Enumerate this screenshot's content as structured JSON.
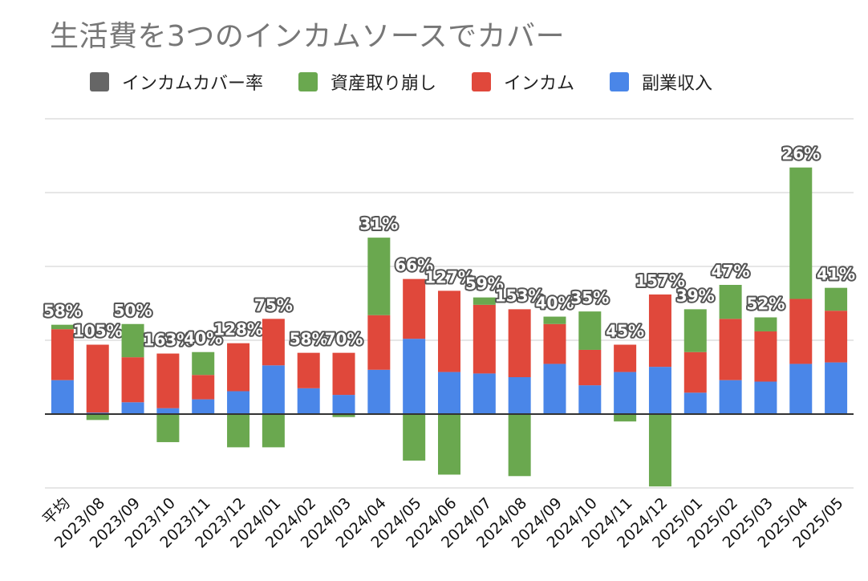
{
  "title": "生活費を3つのインカムソースでカバー",
  "chart_data": {
    "type": "bar",
    "stacked": true,
    "categories": [
      "平均",
      "2023/08",
      "2023/09",
      "2023/10",
      "2023/11",
      "2023/12",
      "2024/01",
      "2024/02",
      "2024/03",
      "2024/04",
      "2024/05",
      "2024/06",
      "2024/07",
      "2024/08",
      "2024/09",
      "2024/10",
      "2024/11",
      "2024/12",
      "2025/01",
      "2025/02",
      "2025/03",
      "2025/04",
      "2025/05"
    ],
    "series": [
      {
        "name": "インカムカバー率",
        "color": "#666666",
        "labels": [
          "58%",
          "105%",
          "50%",
          "163%",
          "40%",
          "128%",
          "75%",
          "58%",
          "70%",
          "31%",
          "66%",
          "127%",
          "59%",
          "153%",
          "40%",
          "35%",
          "45%",
          "157%",
          "39%",
          "47%",
          "52%",
          "26%",
          "41%"
        ]
      },
      {
        "name": "資産取り崩し",
        "color": "#6aa84f",
        "values": [
          0.06,
          -0.08,
          0.45,
          -0.38,
          0.31,
          -0.45,
          -0.45,
          0,
          -0.04,
          1.05,
          -0.63,
          -0.82,
          0.1,
          -0.84,
          0.1,
          0.52,
          -0.1,
          -0.98,
          0.58,
          0.46,
          0.19,
          1.78,
          0.31
        ]
      },
      {
        "name": "インカム",
        "color": "#e0483b",
        "values": [
          0.69,
          0.92,
          0.61,
          0.74,
          0.33,
          0.65,
          0.63,
          0.48,
          0.57,
          0.74,
          0.81,
          1.1,
          0.93,
          0.92,
          0.54,
          0.48,
          0.37,
          0.98,
          0.55,
          0.83,
          0.68,
          0.88,
          0.7
        ]
      },
      {
        "name": "副業収入",
        "color": "#4a86e8",
        "values": [
          0.46,
          0.02,
          0.16,
          0.08,
          0.2,
          0.31,
          0.66,
          0.35,
          0.26,
          0.6,
          1.02,
          0.57,
          0.55,
          0.5,
          0.68,
          0.39,
          0.57,
          0.64,
          0.29,
          0.46,
          0.44,
          0.68,
          0.7
        ]
      }
    ],
    "legend_position": "top",
    "grid": true,
    "y_axis_labels": false,
    "ylim": [
      -1.0,
      4.0
    ]
  }
}
